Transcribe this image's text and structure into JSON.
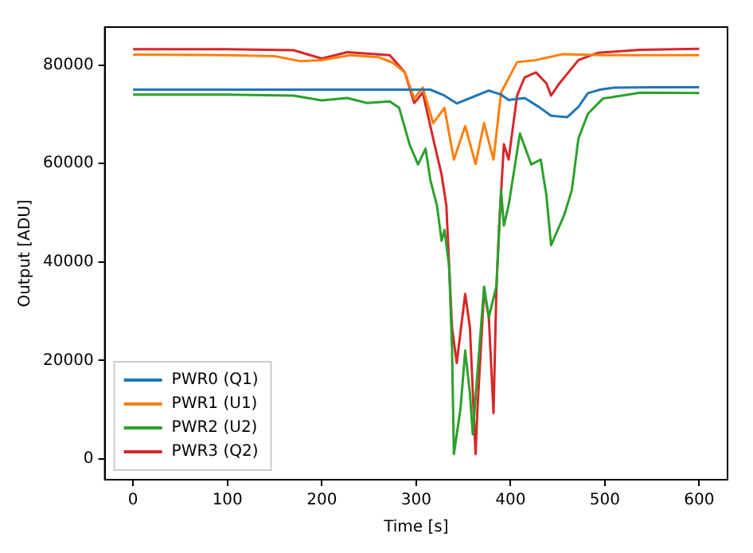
{
  "chart_data": {
    "type": "line",
    "xlabel": "Time [s]",
    "ylabel": "Output [ADU]",
    "xlim": [
      -30,
      630
    ],
    "ylim": [
      -4200,
      87700
    ],
    "xticks": [
      0,
      100,
      200,
      300,
      400,
      500,
      600
    ],
    "yticks": [
      0,
      20000,
      40000,
      60000,
      80000
    ],
    "grid": false,
    "legend": "bottom left",
    "marker": "none",
    "line_style": "solid",
    "series": [
      {
        "name": "PWR0 (Q1)",
        "color": "#1f77b4",
        "x": [
          0,
          100,
          200,
          250,
          300,
          315,
          330,
          343,
          360,
          377,
          390,
          398,
          415,
          430,
          443,
          460,
          472,
          482,
          495,
          510,
          550,
          600
        ],
        "values": [
          75000,
          75000,
          75000,
          75000,
          75000,
          75000,
          73800,
          72200,
          73500,
          74800,
          74000,
          72900,
          73300,
          71500,
          69700,
          69400,
          71500,
          74300,
          75000,
          75400,
          75500,
          75500
        ]
      },
      {
        "name": "PWR1 (U1)",
        "color": "#ff7f0e",
        "x": [
          0,
          100,
          150,
          177,
          200,
          230,
          260,
          275,
          288,
          298,
          307,
          318,
          330,
          340,
          352,
          363,
          372,
          382,
          390,
          407,
          427,
          455,
          500,
          550,
          600
        ],
        "values": [
          82100,
          82000,
          81800,
          80800,
          81000,
          82000,
          81600,
          80500,
          78500,
          73200,
          75400,
          68200,
          71300,
          60800,
          67600,
          59900,
          68200,
          60800,
          74400,
          80600,
          81000,
          82200,
          82000,
          82000,
          82000
        ]
      },
      {
        "name": "PWR2 (U2)",
        "color": "#2ca02c",
        "x": [
          0,
          100,
          170,
          200,
          227,
          248,
          272,
          282,
          293,
          302,
          310,
          315,
          322,
          327,
          330,
          335,
          338,
          340,
          347,
          352,
          357,
          360,
          366,
          372,
          377,
          385,
          390,
          393,
          398,
          410,
          422,
          432,
          438,
          443,
          457,
          465,
          472,
          482,
          498,
          538,
          600
        ],
        "values": [
          74000,
          74000,
          73800,
          72800,
          73300,
          72300,
          72600,
          71300,
          63900,
          59800,
          63000,
          56700,
          51500,
          44300,
          46500,
          39100,
          22600,
          1000,
          10200,
          22000,
          13300,
          5000,
          20000,
          35000,
          28800,
          35000,
          54600,
          47400,
          51500,
          66100,
          59800,
          60800,
          53600,
          43400,
          49600,
          54600,
          65100,
          70100,
          73200,
          74400,
          74300
        ]
      },
      {
        "name": "PWR3 (Q2)",
        "color": "#d62728",
        "x": [
          0,
          100,
          170,
          200,
          227,
          272,
          288,
          298,
          307,
          318,
          327,
          332,
          338,
          343,
          352,
          357,
          363,
          365,
          372,
          377,
          382,
          385,
          388,
          393,
          398,
          407,
          415,
          427,
          438,
          443,
          452,
          472,
          493,
          538,
          600
        ],
        "values": [
          83200,
          83200,
          83000,
          81300,
          82600,
          82000,
          78500,
          72300,
          74400,
          65100,
          57700,
          51500,
          26700,
          19500,
          33500,
          26700,
          1000,
          10200,
          34100,
          28800,
          9300,
          34100,
          47400,
          63900,
          60800,
          73800,
          77500,
          78500,
          76300,
          73800,
          76300,
          81000,
          82500,
          83100,
          83300
        ]
      }
    ]
  }
}
